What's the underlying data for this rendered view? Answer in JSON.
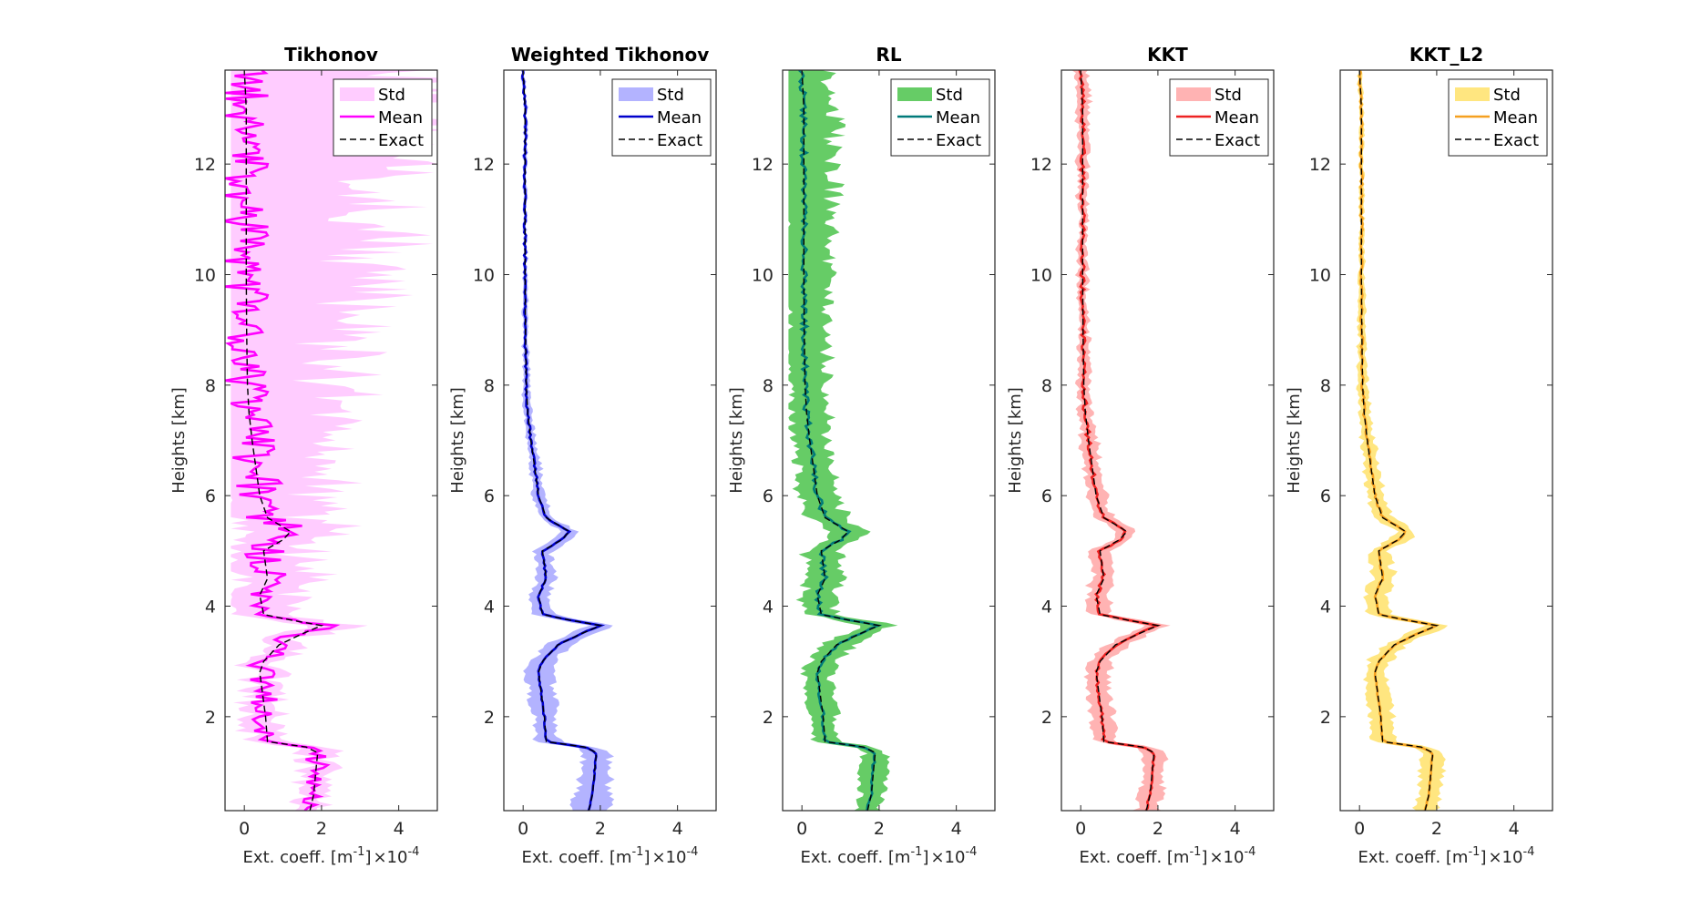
{
  "chart_data": [
    {
      "type": "line",
      "title": "Tikhonov",
      "xlabel": "Ext. coeff. [m",
      "xlabel_exp": "-1",
      "xlabel_close": "]",
      "xscale_times": "×10",
      "xscale_exp": "-4",
      "ylabel": "Heights [km]",
      "xlim": [
        -0.5,
        5
      ],
      "ylim": [
        0.3,
        13.7
      ],
      "xticks": [
        "0",
        "2",
        "4"
      ],
      "yticks": [
        "2",
        "4",
        "6",
        "8",
        "10",
        "12"
      ],
      "legend": [
        "Std",
        "Mean",
        "Exact"
      ],
      "legend_position": "top-right",
      "color": "#ff00ff",
      "fill": "#ffccff",
      "fill_hw": [
        0.35,
        0.5,
        0.4,
        1.0,
        1.4,
        1.9,
        2.5,
        3.0,
        3.5,
        4.0,
        4.5
      ],
      "noise": 0.6,
      "seed": 11
    },
    {
      "type": "line",
      "title": "Weighted Tikhonov",
      "xlabel": "Ext. coeff. [m",
      "xlabel_exp": "-1",
      "xlabel_close": "]",
      "xscale_times": "×10",
      "xscale_exp": "-4",
      "ylabel": "Heights [km]",
      "xlim": [
        -0.5,
        5
      ],
      "ylim": [
        0.3,
        13.7
      ],
      "xticks": [
        "0",
        "2",
        "4"
      ],
      "yticks": [
        "2",
        "4",
        "6",
        "8",
        "10",
        "12"
      ],
      "legend": [
        "Std",
        "Mean",
        "Exact"
      ],
      "legend_position": "top-right",
      "color": "#0000cc",
      "fill": "#b3b3ff",
      "fill_hw": [
        0.5,
        0.3,
        0.35,
        0.25,
        0.2,
        0.12,
        0.08,
        0.06,
        0.05,
        0.05,
        0.05
      ],
      "noise": 0.03,
      "seed": 23
    },
    {
      "type": "line",
      "title": "RL",
      "xlabel": "Ext. coeff. [m",
      "xlabel_exp": "-1",
      "xlabel_close": "]",
      "xscale_times": "×10",
      "xscale_exp": "-4",
      "ylabel": "Heights [km]",
      "xlim": [
        -0.5,
        5
      ],
      "ylim": [
        0.3,
        13.7
      ],
      "xticks": [
        "0",
        "2",
        "4"
      ],
      "yticks": [
        "2",
        "4",
        "6",
        "8",
        "10",
        "12"
      ],
      "legend": [
        "Std",
        "Mean",
        "Exact"
      ],
      "legend_position": "top-right",
      "color": "#007a7a",
      "fill": "#66cc66",
      "fill_hw": [
        0.35,
        0.3,
        0.4,
        0.45,
        0.5,
        0.5,
        0.55,
        0.6,
        0.7,
        0.85,
        0.75
      ],
      "noise": 0.08,
      "seed": 37
    },
    {
      "type": "line",
      "title": "KKT",
      "xlabel": "Ext. coeff. [m",
      "xlabel_exp": "-1",
      "xlabel_close": "]",
      "xscale_times": "×10",
      "xscale_exp": "-4",
      "ylabel": "Heights [km]",
      "xlim": [
        -0.5,
        5
      ],
      "ylim": [
        0.3,
        13.7
      ],
      "xticks": [
        "0",
        "2",
        "4"
      ],
      "yticks": [
        "2",
        "4",
        "6",
        "8",
        "10",
        "12"
      ],
      "legend": [
        "Std",
        "Mean",
        "Exact"
      ],
      "legend_position": "top-right",
      "color": "#ee2222",
      "fill": "#ffb3b3",
      "fill_hw": [
        0.3,
        0.3,
        0.3,
        0.3,
        0.25,
        0.2,
        0.15,
        0.12,
        0.12,
        0.15,
        0.18
      ],
      "noise": 0.06,
      "seed": 41
    },
    {
      "type": "line",
      "title": "KKT_L2",
      "xlabel": "Ext. coeff. [m",
      "xlabel_exp": "-1",
      "xlabel_close": "]",
      "xscale_times": "×10",
      "xscale_exp": "-4",
      "ylabel": "Heights [km]",
      "xlim": [
        -0.5,
        5
      ],
      "ylim": [
        0.3,
        13.7
      ],
      "xticks": [
        "0",
        "2",
        "4"
      ],
      "yticks": [
        "2",
        "4",
        "6",
        "8",
        "10",
        "12"
      ],
      "legend": [
        "Std",
        "Mean",
        "Exact"
      ],
      "legend_position": "top-right",
      "color": "#f5a020",
      "fill": "#ffe680",
      "fill_hw": [
        0.35,
        0.3,
        0.3,
        0.3,
        0.25,
        0.18,
        0.12,
        0.08,
        0.06,
        0.06,
        0.06
      ],
      "noise": 0.03,
      "seed": 53
    }
  ],
  "exact_profile": {
    "heights": [
      0.3,
      0.6,
      1.0,
      1.35,
      1.45,
      1.55,
      2.0,
      2.8,
      3.0,
      3.3,
      3.5,
      3.65,
      3.75,
      3.85,
      4.2,
      4.5,
      5.0,
      5.2,
      5.35,
      5.6,
      6.0,
      6.5,
      7.0,
      7.5,
      8.0,
      9.0,
      10.0,
      11.0,
      12.0,
      13.0,
      13.7
    ],
    "values": [
      1.7,
      1.8,
      1.85,
      1.9,
      1.6,
      0.6,
      0.55,
      0.4,
      0.5,
      0.9,
      1.5,
      2.0,
      1.2,
      0.5,
      0.4,
      0.6,
      0.5,
      1.0,
      1.2,
      0.6,
      0.4,
      0.3,
      0.2,
      0.12,
      0.08,
      0.06,
      0.05,
      0.05,
      0.05,
      0.05,
      0.0
    ]
  }
}
